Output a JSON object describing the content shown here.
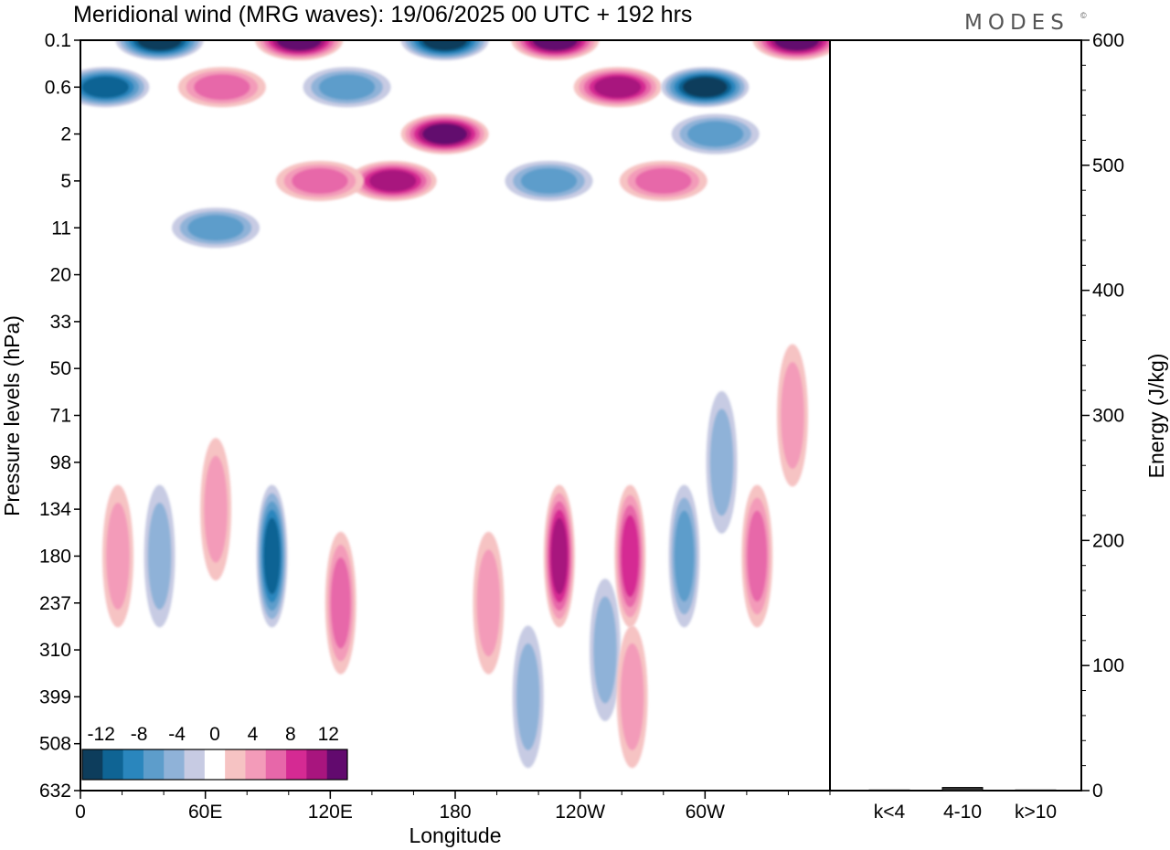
{
  "header": {
    "title": "Meridional wind (MRG waves):  19/06/2025  00 UTC  + 192 hrs",
    "logo_text": "MODES",
    "logo_mark": "©"
  },
  "chart_data": [
    {
      "type": "heatmap",
      "title": "Meridional wind (MRG waves):  19/06/2025  00 UTC  + 192 hrs",
      "xlabel": "Longitude",
      "ylabel": "Pressure levels (hPa)",
      "x_ticks": [
        "0",
        "60E",
        "120E",
        "180",
        "120W",
        "60W"
      ],
      "x_tick_values": [
        0,
        60,
        120,
        180,
        240,
        300
      ],
      "xlim": [
        0,
        360
      ],
      "y_ticks": [
        "0.1",
        "0.6",
        "2",
        "5",
        "11",
        "20",
        "33",
        "50",
        "71",
        "98",
        "134",
        "180",
        "237",
        "310",
        "399",
        "508",
        "632"
      ],
      "y_axis_inverted": true,
      "colorbar": {
        "tick_labels": [
          "-12",
          "-8",
          "-4",
          "0",
          "4",
          "8",
          "12"
        ],
        "levels": [
          -14,
          -12,
          -10,
          -8,
          -6,
          -4,
          -2,
          2,
          4,
          6,
          8,
          10,
          12,
          14
        ],
        "colors": [
          "#0d3d5c",
          "#0f6494",
          "#2a86bd",
          "#5d9dcb",
          "#8fb2d8",
          "#c7cbe3",
          "#ffffff",
          "#f6c3c3",
          "#f39bb9",
          "#e767a9",
          "#d52a93",
          "#a8157e",
          "#620a6e"
        ],
        "location": "bottom-left"
      },
      "features": [
        {
          "lon": 12,
          "level": "0.6",
          "value": -11
        },
        {
          "lon": 38,
          "level": "0.1",
          "value": -13
        },
        {
          "lon": 68,
          "level": "0.6",
          "value": 6
        },
        {
          "lon": 105,
          "level": "0.1",
          "value": 13
        },
        {
          "lon": 128,
          "level": "0.6",
          "value": -7
        },
        {
          "lon": 175,
          "level": "0.1",
          "value": -12
        },
        {
          "lon": 175,
          "level": "2",
          "value": 12
        },
        {
          "lon": 150,
          "level": "5",
          "value": 10
        },
        {
          "lon": 115,
          "level": "5",
          "value": 7
        },
        {
          "lon": 65,
          "level": "11",
          "value": -6
        },
        {
          "lon": 228,
          "level": "0.1",
          "value": 13
        },
        {
          "lon": 258,
          "level": "0.6",
          "value": 11
        },
        {
          "lon": 300,
          "level": "0.6",
          "value": -13
        },
        {
          "lon": 305,
          "level": "2",
          "value": -7
        },
        {
          "lon": 225,
          "level": "5",
          "value": -6
        },
        {
          "lon": 280,
          "level": "5",
          "value": 7
        },
        {
          "lon": 344,
          "level": "0.1",
          "value": 12
        },
        {
          "lon": 308,
          "level": "98",
          "value": -5
        },
        {
          "lon": 342,
          "level": "71",
          "value": 5
        },
        {
          "lon": 18,
          "level": "180",
          "value": 5
        },
        {
          "lon": 38,
          "level": "180",
          "value": -5
        },
        {
          "lon": 65,
          "level": "134",
          "value": 5
        },
        {
          "lon": 92,
          "level": "180",
          "value": -10
        },
        {
          "lon": 125,
          "level": "237",
          "value": 6
        },
        {
          "lon": 230,
          "level": "180",
          "value": 10
        },
        {
          "lon": 264,
          "level": "180",
          "value": 8
        },
        {
          "lon": 290,
          "level": "180",
          "value": -6
        },
        {
          "lon": 325,
          "level": "180",
          "value": 6
        },
        {
          "lon": 196,
          "level": "237",
          "value": 4
        },
        {
          "lon": 215,
          "level": "399",
          "value": -5
        },
        {
          "lon": 252,
          "level": "310",
          "value": -4
        },
        {
          "lon": 265,
          "level": "399",
          "value": 5
        }
      ]
    },
    {
      "type": "bar",
      "categories": [
        "k<4",
        "4-10",
        "k>10"
      ],
      "values": [
        0.5,
        2.5,
        0.5
      ],
      "ylabel": "Energy (J/kg)",
      "ylim": [
        0,
        600
      ],
      "y_ticks": [
        "0",
        "100",
        "200",
        "300",
        "400",
        "500",
        "600"
      ],
      "y_axis_position": "right"
    }
  ]
}
